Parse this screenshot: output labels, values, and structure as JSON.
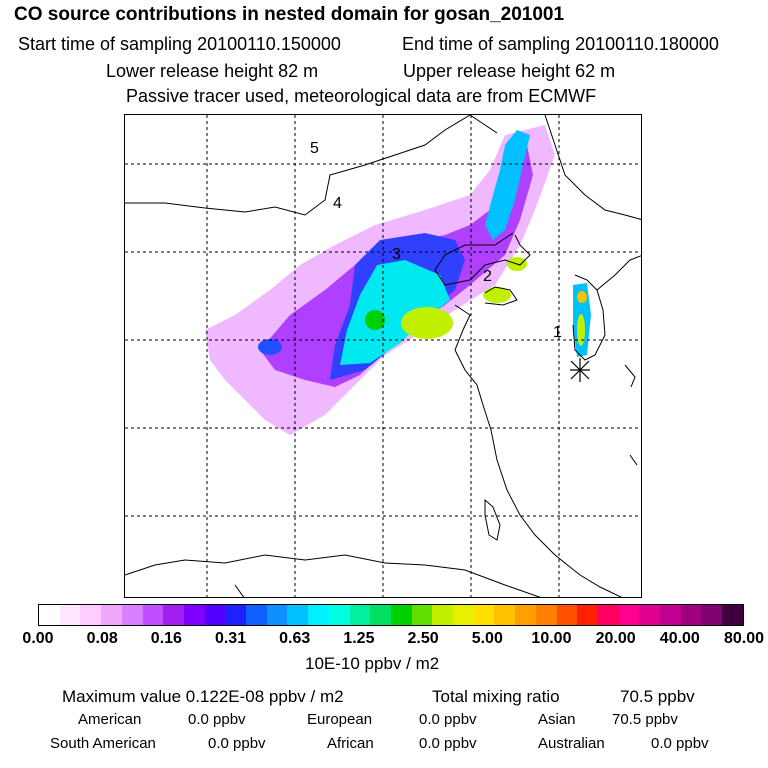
{
  "header": {
    "title": "CO  source contributions in nested domain for gosan_201001",
    "start_label": "Start time of sampling 20100110.150000",
    "end_label": "End time of sampling 20100110.180000",
    "lower_label": "Lower release height   82 m",
    "upper_label": "Upper release height   62 m",
    "tracer_label": "Passive tracer used, meteorological data are from ECMWF"
  },
  "map": {
    "trajectory_labels": [
      "1",
      "2",
      "3",
      "4",
      "5"
    ],
    "receptor_marker": "asterisk-icon"
  },
  "colorbar": {
    "colors": [
      "#ffffff",
      "#ffe6ff",
      "#ffccff",
      "#f0a8ff",
      "#d880ff",
      "#c050ff",
      "#a020f0",
      "#8000ff",
      "#5000ff",
      "#2020ff",
      "#1060ff",
      "#1090ff",
      "#00c0ff",
      "#00f0ff",
      "#00ffe0",
      "#00f0a0",
      "#00e060",
      "#00d000",
      "#60e000",
      "#c0f000",
      "#e8f000",
      "#ffe000",
      "#ffc000",
      "#ffa000",
      "#ff8000",
      "#ff5000",
      "#ff2000",
      "#ff0060",
      "#ff0090",
      "#e00090",
      "#c00090",
      "#a00080",
      "#800070",
      "#400040"
    ],
    "ticks": [
      "0.00",
      "0.08",
      "0.16",
      "0.31",
      "0.63",
      "1.25",
      "2.50",
      "5.00",
      "10.00",
      "20.00",
      "40.00",
      "80.00"
    ],
    "units": "10E-10 ppbv / m2"
  },
  "stats": {
    "max_label": "Maximum value  0.122E-08 ppbv / m2",
    "total_label": "Total mixing ratio",
    "total_value": "70.5 ppbv",
    "american_label": "American",
    "american_value": "0.0 ppbv",
    "european_label": "European",
    "european_value": "0.0 ppbv",
    "asian_label": "Asian",
    "asian_value": "70.5 ppbv",
    "south_american_label": "South American",
    "south_american_value": "0.0 ppbv",
    "african_label": "African",
    "african_value": "0.0 ppbv",
    "australian_label": "Australian",
    "australian_value": "0.0 ppbv"
  }
}
